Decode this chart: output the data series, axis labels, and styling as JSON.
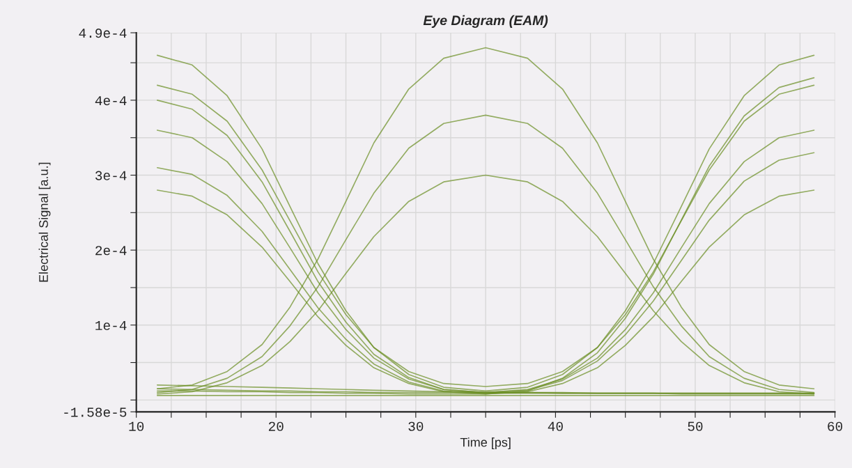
{
  "chart_data": {
    "type": "line",
    "title": "Eye Diagram (EAM)",
    "xlabel": "Time [ps]",
    "ylabel": "Electrical Signal [a.u.]",
    "x": [
      11.5,
      14,
      16.5,
      19,
      21,
      23,
      25,
      27,
      29.5,
      32,
      35,
      38,
      40.5,
      43,
      45,
      47,
      49,
      51,
      53.5,
      56,
      58.5
    ],
    "series": [
      {
        "color": "#6b8e23",
        "values": [
          0.00036,
          0.00035,
          0.000318,
          0.000262,
          0.000203,
          0.000143,
          9.4e-05,
          5.6e-05,
          2.8e-05,
          1.4e-05,
          1e-05,
          1.4e-05,
          2.8e-05,
          5.6e-05,
          9.4e-05,
          0.000143,
          0.000203,
          0.000262,
          0.000318,
          0.00035,
          0.00036
        ]
      },
      {
        "color": "#6b8e23",
        "values": [
          0.00046,
          0.000447,
          0.000406,
          0.000335,
          0.000258,
          0.000182,
          0.000119,
          7e-05,
          3.4e-05,
          1.7e-05,
          1.2e-05,
          1.7e-05,
          3.4e-05,
          7e-05,
          0.000119,
          0.000182,
          0.000258,
          0.000335,
          0.000406,
          0.000447,
          0.00046
        ]
      },
      {
        "color": "#6b8e23",
        "values": [
          0.00028,
          0.000272,
          0.000247,
          0.000204,
          0.000158,
          0.000111,
          7.3e-05,
          4.3e-05,
          2.2e-05,
          1.1e-05,
          8e-06,
          1.1e-05,
          2.2e-05,
          4.3e-05,
          7.3e-05,
          0.000111,
          0.000158,
          0.000204,
          0.000247,
          0.000272,
          0.00028
        ]
      },
      {
        "color": "#6b8e23",
        "values": [
          0.00042,
          0.000408,
          0.000372,
          0.000307,
          0.000239,
          0.000171,
          0.000114,
          7e-05,
          3.8e-05,
          2.2e-05,
          1.8e-05,
          2.2e-05,
          3.8e-05,
          7e-05,
          0.000114,
          0.000171,
          0.000239,
          0.000307,
          0.000372,
          0.000408,
          0.00042
        ]
      },
      {
        "color": "#6b8e23",
        "values": [
          0.0004,
          0.000388,
          0.000353,
          0.000291,
          0.000225,
          0.000158,
          0.000104,
          6.1e-05,
          3e-05,
          1.4e-05,
          1e-05,
          1e-05,
          9e-06,
          9e-06,
          9e-06,
          9e-06,
          8e-06,
          8e-06,
          8e-06,
          8e-06,
          8e-06
        ]
      },
      {
        "color": "#6b8e23",
        "values": [
          0.00031,
          0.000301,
          0.000273,
          0.000225,
          0.000174,
          0.000123,
          8.1e-05,
          4.8e-05,
          2.4e-05,
          1.2e-05,
          9e-06,
          9e-06,
          9e-06,
          9e-06,
          9e-06,
          9e-06,
          9e-06,
          9e-06,
          9e-06,
          9e-06,
          9e-06
        ]
      },
      {
        "color": "#6b8e23",
        "values": [
          1.5e-05,
          1.4e-05,
          1.3e-05,
          1.2e-05,
          1.2e-05,
          1.1e-05,
          1.1e-05,
          1e-05,
          1e-05,
          1e-05,
          1e-05,
          1.3e-05,
          2.6e-05,
          5.2e-05,
          8.7e-05,
          0.000132,
          0.000186,
          0.00024,
          0.000292,
          0.00032,
          0.00033
        ]
      },
      {
        "color": "#6b8e23",
        "values": [
          1.2e-05,
          1.2e-05,
          1.1e-05,
          1.1e-05,
          1e-05,
          1e-05,
          9e-06,
          9e-06,
          8e-06,
          8e-06,
          8e-06,
          1.2e-05,
          2.9e-05,
          6.3e-05,
          0.000109,
          0.000168,
          0.00024,
          0.000312,
          0.000379,
          0.000417,
          0.00043
        ]
      },
      {
        "color": "#6b8e23",
        "values": [
          1e-05,
          1.4e-05,
          2.9e-05,
          5.8e-05,
          9.9e-05,
          0.000151,
          0.000214,
          0.000276,
          0.000336,
          0.000369,
          0.00038,
          0.000369,
          0.000336,
          0.000276,
          0.000214,
          0.000151,
          9.9e-05,
          5.8e-05,
          2.9e-05,
          1.4e-05,
          1e-05
        ]
      },
      {
        "color": "#6b8e23",
        "values": [
          1.5e-05,
          2e-05,
          3.8e-05,
          7.4e-05,
          0.000124,
          0.000188,
          0.000265,
          0.000343,
          0.000415,
          0.000456,
          0.00047,
          0.000456,
          0.000415,
          0.000343,
          0.000265,
          0.000188,
          0.000124,
          7.4e-05,
          3.8e-05,
          2e-05,
          1.5e-05
        ]
      },
      {
        "color": "#6b8e23",
        "values": [
          8e-06,
          1.1e-05,
          2.3e-05,
          4.6e-05,
          7.8e-05,
          0.000119,
          0.000169,
          0.000218,
          0.000265,
          0.000291,
          0.0003,
          0.000291,
          0.000265,
          0.000218,
          0.000169,
          0.000119,
          7.8e-05,
          4.6e-05,
          2.3e-05,
          1.1e-05,
          8e-06
        ]
      },
      {
        "color": "#6b8e23",
        "values": [
          2e-05,
          1.9e-05,
          1.8e-05,
          1.7e-05,
          1.6e-05,
          1.5e-05,
          1.4e-05,
          1.3e-05,
          1.2e-05,
          1.1e-05,
          1e-05,
          1e-05,
          1e-05,
          9e-06,
          9e-06,
          9e-06,
          9e-06,
          9e-06,
          9e-06,
          9e-06,
          9e-06
        ]
      },
      {
        "color": "#6b8e23",
        "values": [
          6e-06,
          6e-06,
          6e-06,
          6e-06,
          6e-06,
          6e-06,
          6e-06,
          6e-06,
          6e-06,
          6e-06,
          6e-06,
          6e-06,
          6e-06,
          6e-06,
          6e-06,
          6e-06,
          6e-06,
          6e-06,
          6e-06,
          6e-06,
          6e-06
        ]
      }
    ],
    "xlim": [
      10,
      60
    ],
    "xticks": [
      10,
      {
        "value": 12.5,
        "label": null
      },
      {
        "value": 15,
        "label": null
      },
      {
        "value": 17.5,
        "label": null
      },
      20,
      {
        "value": 22.5,
        "label": null
      },
      {
        "value": 25,
        "label": null
      },
      {
        "value": 27.5,
        "label": null
      },
      30,
      {
        "value": 32.5,
        "label": null
      },
      {
        "value": 35,
        "label": null
      },
      {
        "value": 37.5,
        "label": null
      },
      40,
      {
        "value": 42.5,
        "label": null
      },
      {
        "value": 45,
        "label": null
      },
      {
        "value": 47.5,
        "label": null
      },
      50,
      {
        "value": 52.5,
        "label": null
      },
      {
        "value": 55,
        "label": null
      },
      {
        "value": 57.5,
        "label": null
      },
      60
    ],
    "ylim": [
      -1.58e-05,
      0.00049
    ],
    "yticks": [
      {
        "value": -1.58e-05,
        "label": "-1.58e-5"
      },
      {
        "value": 0,
        "label": null
      },
      {
        "value": 5e-05,
        "label": null
      },
      {
        "value": 0.0001,
        "label": "1e-4"
      },
      {
        "value": 0.00015,
        "label": null
      },
      {
        "value": 0.0002,
        "label": "2e-4"
      },
      {
        "value": 0.00025,
        "label": null
      },
      {
        "value": 0.0003,
        "label": "3e-4"
      },
      {
        "value": 0.00035,
        "label": null
      },
      {
        "value": 0.0004,
        "label": "4e-4"
      },
      {
        "value": 0.00045,
        "label": null
      },
      {
        "value": 0.00049,
        "label": "4.9e-4"
      }
    ],
    "grid": true,
    "marker": "none",
    "line_style": "solid"
  }
}
